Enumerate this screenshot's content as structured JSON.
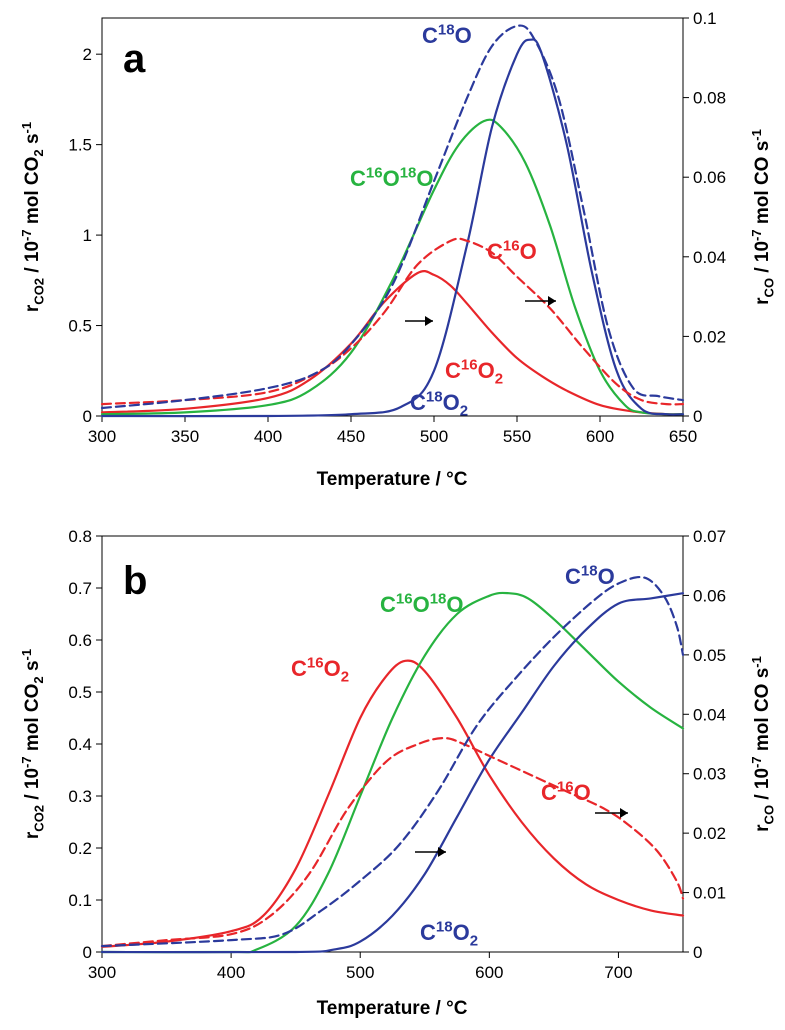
{
  "chart_data": [
    {
      "type": "line",
      "panel_label": "a",
      "xlabel": "Temperature / °C",
      "ylabel_left": "r_CO2 / 10-7 mol CO2 s-1",
      "ylabel_right": "r_CO / 10-7 mol CO s-1",
      "xlim": [
        300,
        650
      ],
      "ylim_left": [
        0,
        2.2
      ],
      "ylim_right": [
        0,
        0.1
      ],
      "xticks": [
        "300",
        "350",
        "400",
        "450",
        "500",
        "550",
        "600",
        "650"
      ],
      "yticks_left": [
        "0",
        "0.5",
        "1",
        "1.5",
        "2"
      ],
      "yticks_right": [
        "0",
        "0.02",
        "0.04",
        "0.06",
        "0.08",
        "0.1"
      ],
      "grid": false,
      "series": [
        {
          "name": "C16O2",
          "axis": "left",
          "style": "solid",
          "color": "#e8262a",
          "x": [
            300,
            350,
            400,
            425,
            450,
            470,
            490,
            500,
            510,
            520,
            535,
            550,
            565,
            580,
            600,
            620,
            640,
            650
          ],
          "y": [
            0.02,
            0.04,
            0.1,
            0.2,
            0.4,
            0.63,
            0.79,
            0.78,
            0.72,
            0.62,
            0.46,
            0.32,
            0.22,
            0.14,
            0.06,
            0.025,
            0.01,
            0.01
          ]
        },
        {
          "name": "C16O18O",
          "axis": "left",
          "style": "solid",
          "color": "#27b340",
          "x": [
            300,
            350,
            400,
            425,
            450,
            475,
            500,
            515,
            530,
            540,
            555,
            570,
            585,
            600,
            615,
            625,
            640,
            650
          ],
          "y": [
            0.01,
            0.02,
            0.06,
            0.14,
            0.35,
            0.75,
            1.25,
            1.5,
            1.63,
            1.6,
            1.4,
            1.05,
            0.6,
            0.25,
            0.06,
            0.02,
            0.01,
            0.01
          ]
        },
        {
          "name": "C18O2",
          "axis": "left",
          "style": "solid",
          "color": "#2b3a9c",
          "x": [
            300,
            400,
            450,
            480,
            500,
            520,
            535,
            550,
            558,
            565,
            580,
            595,
            610,
            625,
            640,
            650
          ],
          "y": [
            0,
            0,
            0.01,
            0.05,
            0.25,
            0.95,
            1.6,
            2.0,
            2.08,
            2.0,
            1.5,
            0.8,
            0.25,
            0.04,
            0.01,
            0.01
          ]
        },
        {
          "name": "C16O",
          "axis": "right",
          "style": "dashed",
          "color": "#e8262a",
          "x": [
            300,
            350,
            400,
            430,
            450,
            470,
            490,
            510,
            520,
            535,
            550,
            570,
            590,
            610,
            625,
            640,
            650
          ],
          "y": [
            0.003,
            0.004,
            0.006,
            0.011,
            0.017,
            0.026,
            0.038,
            0.044,
            0.044,
            0.041,
            0.035,
            0.027,
            0.017,
            0.008,
            0.004,
            0.003,
            0.003
          ]
        },
        {
          "name": "C18O",
          "axis": "right",
          "style": "dashed",
          "color": "#2b3a9c",
          "x": [
            300,
            350,
            400,
            430,
            450,
            475,
            500,
            520,
            535,
            550,
            560,
            575,
            590,
            605,
            620,
            635,
            650
          ],
          "y": [
            0.002,
            0.004,
            0.007,
            0.011,
            0.018,
            0.033,
            0.059,
            0.08,
            0.093,
            0.098,
            0.095,
            0.08,
            0.052,
            0.022,
            0.007,
            0.005,
            0.004
          ]
        }
      ],
      "annotations": [
        {
          "text_parts": [
            "C",
            "16",
            "O",
            "2",
            ""
          ],
          "color": "#e8262a"
        },
        {
          "text_parts": [
            "C",
            "16",
            "O",
            "18",
            "O"
          ],
          "color": "#27b340"
        },
        {
          "text_parts": [
            "C",
            "18",
            "O",
            "2",
            ""
          ],
          "color": "#2b3a9c"
        },
        {
          "text_parts": [
            "C",
            "16",
            "O",
            "",
            ""
          ],
          "color": "#e8262a"
        },
        {
          "text_parts": [
            "C",
            "18",
            "O",
            "",
            ""
          ],
          "color": "#2b3a9c"
        }
      ]
    },
    {
      "type": "line",
      "panel_label": "b",
      "xlabel": "Temperature / °C",
      "ylabel_left": "r_CO2 / 10-7 mol CO2 s-1",
      "ylabel_right": "r_CO / 10-7 mol CO s-1",
      "xlim": [
        300,
        750
      ],
      "ylim_left": [
        0,
        0.8
      ],
      "ylim_right": [
        0,
        0.07
      ],
      "xticks": [
        "300",
        "400",
        "500",
        "600",
        "700"
      ],
      "yticks_left": [
        "0",
        "0.1",
        "0.2",
        "0.3",
        "0.4",
        "0.5",
        "0.6",
        "0.7",
        "0.8"
      ],
      "yticks_right": [
        "0",
        "0.01",
        "0.02",
        "0.03",
        "0.04",
        "0.05",
        "0.06",
        "0.07"
      ],
      "grid": false,
      "series": [
        {
          "name": "C16O2",
          "axis": "left",
          "style": "solid",
          "color": "#e8262a",
          "x": [
            300,
            350,
            400,
            425,
            450,
            475,
            500,
            520,
            535,
            550,
            575,
            600,
            625,
            650,
            675,
            700,
            725,
            750
          ],
          "y": [
            0.01,
            0.02,
            0.04,
            0.07,
            0.16,
            0.3,
            0.45,
            0.53,
            0.56,
            0.54,
            0.45,
            0.34,
            0.25,
            0.18,
            0.13,
            0.1,
            0.08,
            0.07
          ]
        },
        {
          "name": "C16O18O",
          "axis": "left",
          "style": "solid",
          "color": "#27b340",
          "x": [
            300,
            400,
            420,
            450,
            475,
            500,
            525,
            550,
            575,
            600,
            615,
            630,
            650,
            675,
            700,
            725,
            750
          ],
          "y": [
            0,
            0,
            0.005,
            0.05,
            0.15,
            0.3,
            0.45,
            0.57,
            0.65,
            0.685,
            0.69,
            0.68,
            0.64,
            0.58,
            0.52,
            0.47,
            0.43
          ]
        },
        {
          "name": "C18O2",
          "axis": "left",
          "style": "solid",
          "color": "#2b3a9c",
          "x": [
            300,
            450,
            480,
            500,
            525,
            550,
            575,
            600,
            625,
            650,
            675,
            700,
            725,
            750
          ],
          "y": [
            0,
            0,
            0.005,
            0.02,
            0.07,
            0.15,
            0.26,
            0.37,
            0.46,
            0.55,
            0.62,
            0.67,
            0.68,
            0.69
          ]
        },
        {
          "name": "C16O",
          "axis": "right",
          "style": "dashed",
          "color": "#e8262a",
          "x": [
            300,
            350,
            400,
            430,
            460,
            490,
            520,
            545,
            565,
            580,
            600,
            630,
            660,
            690,
            710,
            730,
            745,
            750
          ],
          "y": [
            0.001,
            0.002,
            0.003,
            0.006,
            0.013,
            0.024,
            0.032,
            0.035,
            0.036,
            0.035,
            0.033,
            0.03,
            0.027,
            0.024,
            0.021,
            0.017,
            0.012,
            0.009
          ]
        },
        {
          "name": "C18O",
          "axis": "right",
          "style": "dashed",
          "color": "#2b3a9c",
          "x": [
            300,
            400,
            440,
            470,
            500,
            530,
            560,
            590,
            620,
            650,
            680,
            700,
            720,
            735,
            745,
            750
          ],
          "y": [
            0.001,
            0.002,
            0.003,
            0.007,
            0.012,
            0.018,
            0.027,
            0.038,
            0.046,
            0.053,
            0.059,
            0.062,
            0.063,
            0.06,
            0.055,
            0.05
          ]
        }
      ],
      "annotations": [
        {
          "text_parts": [
            "C",
            "16",
            "O",
            "2",
            ""
          ],
          "color": "#e8262a"
        },
        {
          "text_parts": [
            "C",
            "16",
            "O",
            "18",
            "O"
          ],
          "color": "#27b340"
        },
        {
          "text_parts": [
            "C",
            "18",
            "O",
            "2",
            ""
          ],
          "color": "#2b3a9c"
        },
        {
          "text_parts": [
            "C",
            "16",
            "O",
            "",
            ""
          ],
          "color": "#e8262a"
        },
        {
          "text_parts": [
            "C",
            "18",
            "O",
            "",
            ""
          ],
          "color": "#2b3a9c"
        }
      ]
    }
  ]
}
